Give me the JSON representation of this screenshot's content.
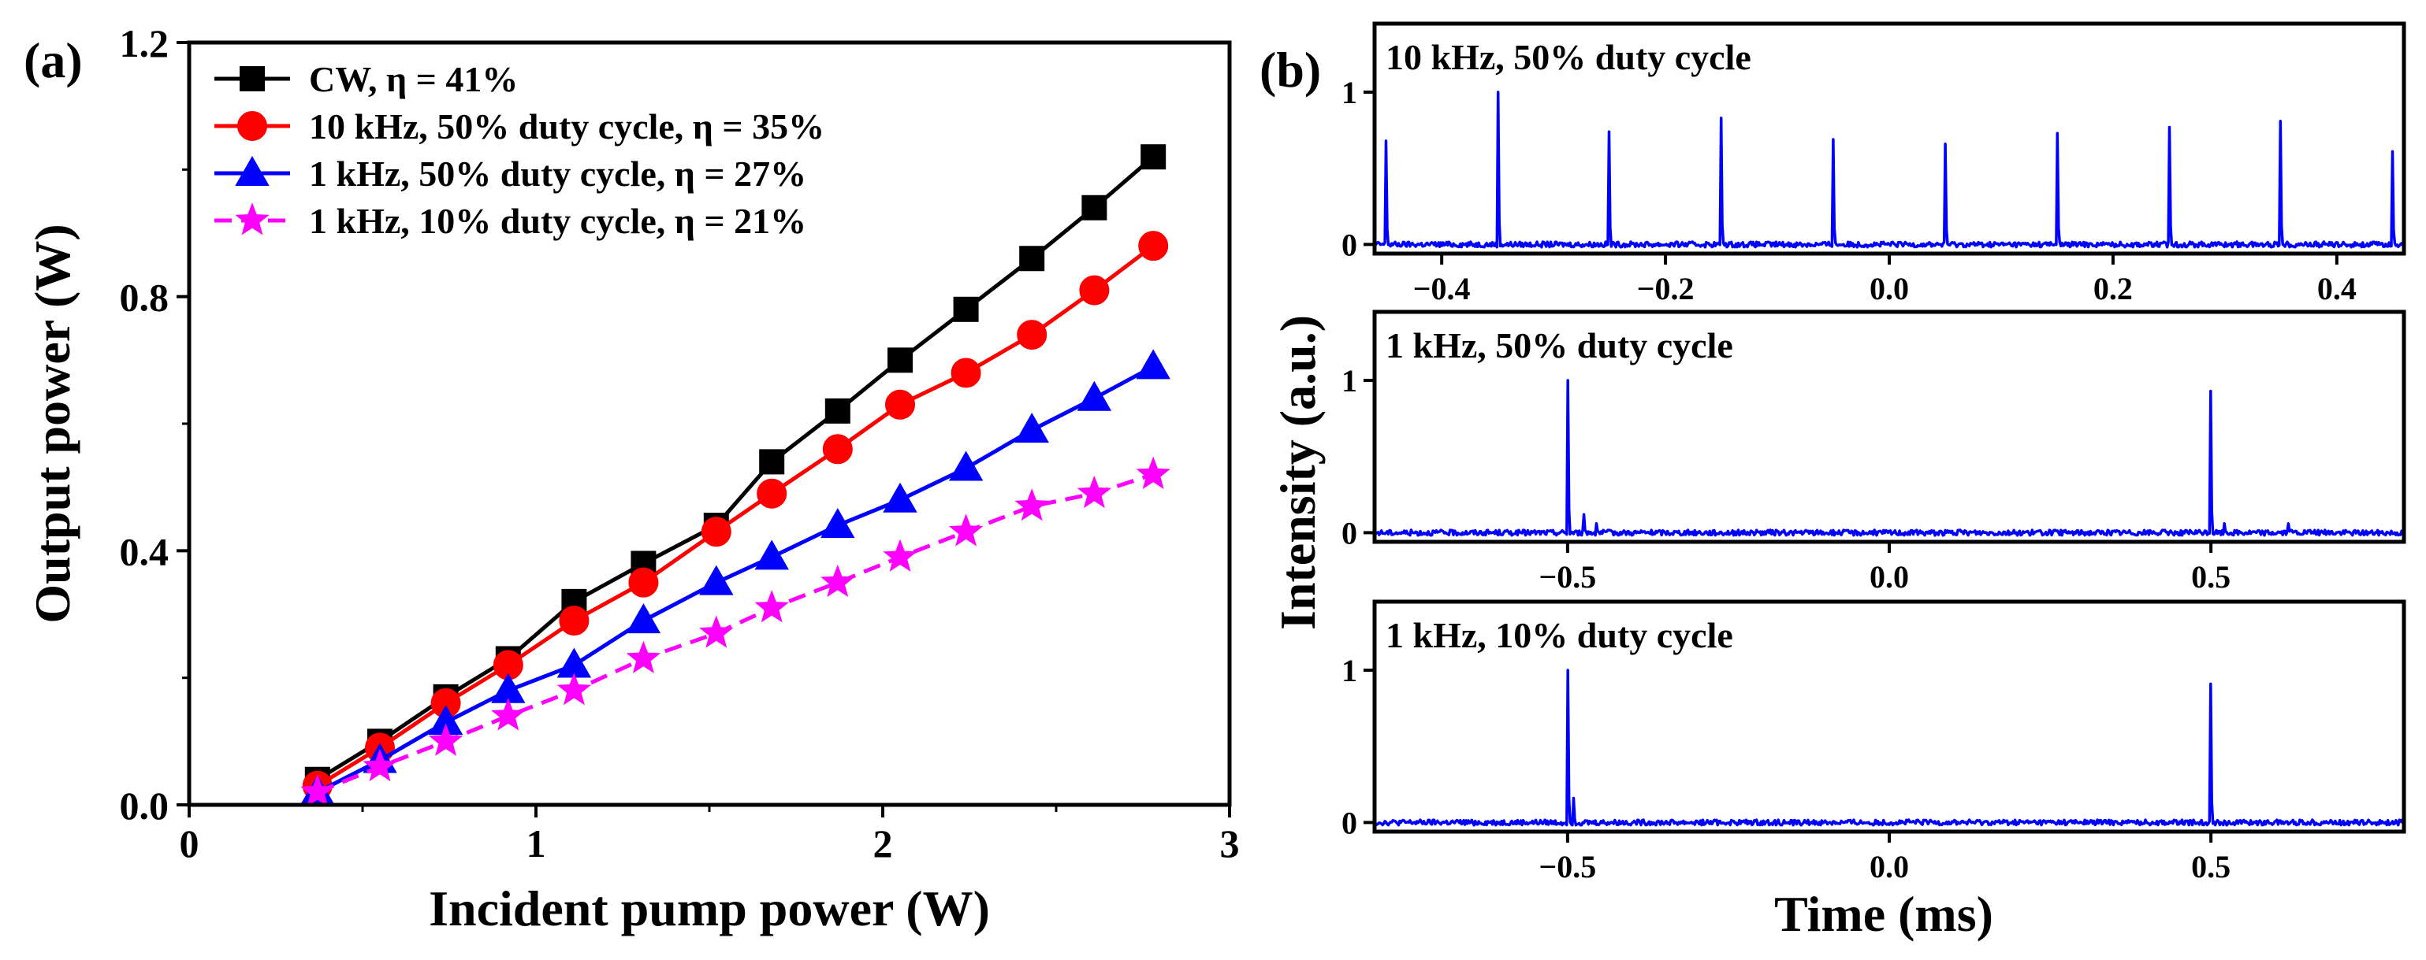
{
  "panel_labels": {
    "a": "(a)",
    "b": "(b)"
  },
  "colors": {
    "cw": "#000000",
    "khz10_50": "#ff0000",
    "khz1_50": "#0000ff",
    "khz1_10": "#ff00ff",
    "trace": "#0000ff"
  },
  "chart_data": [
    {
      "id": "a",
      "type": "line",
      "xlabel": "Incident pump power (W)",
      "ylabel": "Output power (W)",
      "xlim": [
        0,
        3
      ],
      "ylim": [
        0,
        1.2
      ],
      "xticks": [
        0,
        1,
        2,
        3
      ],
      "xtick_labels": [
        "0",
        "1",
        "2",
        "3"
      ],
      "yticks": [
        0,
        0.4,
        0.8,
        1.2
      ],
      "ytick_labels": [
        "0.0",
        "0.4",
        "0.8",
        "1.2"
      ],
      "legend_position": "top-left",
      "x": [
        0.37,
        0.55,
        0.74,
        0.92,
        1.11,
        1.31,
        1.52,
        1.68,
        1.87,
        2.05,
        2.24,
        2.43,
        2.61,
        2.78
      ],
      "series": [
        {
          "name": "CW, η = 41%",
          "color": "#000000",
          "marker": "square",
          "dash": "solid",
          "values": [
            0.04,
            0.1,
            0.17,
            0.23,
            0.32,
            0.38,
            0.44,
            0.54,
            0.62,
            0.7,
            0.78,
            0.86,
            0.94,
            1.02
          ]
        },
        {
          "name": "10 kHz, 50% duty cycle, η = 35%",
          "color": "#ff0000",
          "marker": "circle",
          "dash": "solid",
          "values": [
            0.03,
            0.09,
            0.16,
            0.22,
            0.29,
            0.35,
            0.43,
            0.49,
            0.56,
            0.63,
            0.68,
            0.74,
            0.81,
            0.88
          ]
        },
        {
          "name": "1 kHz, 50% duty cycle, η = 27%",
          "color": "#0000ff",
          "marker": "triangle",
          "dash": "solid",
          "values": [
            0.02,
            0.07,
            0.13,
            0.18,
            0.22,
            0.29,
            0.35,
            0.39,
            0.44,
            0.48,
            0.53,
            0.59,
            0.64,
            0.69
          ]
        },
        {
          "name": "1 kHz, 10% duty cycle, η = 21%",
          "color": "#ff00ff",
          "marker": "star",
          "dash": "dashed",
          "values": [
            0.02,
            0.06,
            0.1,
            0.14,
            0.18,
            0.23,
            0.27,
            0.31,
            0.35,
            0.39,
            0.43,
            0.47,
            0.49,
            0.52
          ]
        }
      ]
    },
    {
      "id": "b1",
      "type": "line",
      "title": "10 kHz, 50% duty cycle",
      "xlabel": "",
      "ylabel": "Intensity (a.u.)",
      "xlim": [
        -0.46,
        0.46
      ],
      "ylim": [
        -0.06,
        1.45
      ],
      "xticks": [
        -0.4,
        -0.2,
        0.0,
        0.2,
        0.4
      ],
      "xtick_labels": [
        "−0.4",
        "−0.2",
        "0.0",
        "0.2",
        "0.4"
      ],
      "yticks": [
        0,
        1
      ],
      "ytick_labels": [
        "0",
        "1"
      ],
      "pulses": [
        {
          "t": -0.45,
          "h": 0.68
        },
        {
          "t": -0.35,
          "h": 1.0
        },
        {
          "t": -0.25,
          "h": 0.74
        },
        {
          "t": -0.15,
          "h": 0.83
        },
        {
          "t": -0.05,
          "h": 0.69
        },
        {
          "t": 0.05,
          "h": 0.66
        },
        {
          "t": 0.15,
          "h": 0.73
        },
        {
          "t": 0.25,
          "h": 0.77
        },
        {
          "t": 0.35,
          "h": 0.81
        },
        {
          "t": 0.45,
          "h": 0.61
        }
      ]
    },
    {
      "id": "b2",
      "type": "line",
      "title": "1 kHz, 50% duty cycle",
      "xlabel": "",
      "ylabel": "Intensity (a.u.)",
      "xlim": [
        -0.8,
        0.8
      ],
      "ylim": [
        -0.06,
        1.45
      ],
      "xticks": [
        -0.5,
        0.0,
        0.5
      ],
      "xtick_labels": [
        "−0.5",
        "0.0",
        "0.5"
      ],
      "yticks": [
        0,
        1
      ],
      "ytick_labels": [
        "0",
        "1"
      ],
      "pulses": [
        {
          "t": -0.5,
          "h": 1.0
        },
        {
          "t": -0.475,
          "h": 0.12
        },
        {
          "t": -0.455,
          "h": 0.06
        },
        {
          "t": 0.5,
          "h": 0.93
        },
        {
          "t": 0.52,
          "h": 0.06
        },
        {
          "t": 0.62,
          "h": 0.06
        }
      ]
    },
    {
      "id": "b3",
      "type": "line",
      "title": "1 kHz, 10% duty cycle",
      "xlabel": "Time (ms)",
      "ylabel": "Intensity (a.u.)",
      "xlim": [
        -0.8,
        0.8
      ],
      "ylim": [
        -0.06,
        1.45
      ],
      "xticks": [
        -0.5,
        0.0,
        0.5
      ],
      "xtick_labels": [
        "−0.5",
        "0.0",
        "0.5"
      ],
      "yticks": [
        0,
        1
      ],
      "ytick_labels": [
        "0",
        "1"
      ],
      "pulses": [
        {
          "t": -0.5,
          "h": 1.0
        },
        {
          "t": -0.49,
          "h": 0.16
        },
        {
          "t": 0.5,
          "h": 0.91
        }
      ]
    }
  ]
}
